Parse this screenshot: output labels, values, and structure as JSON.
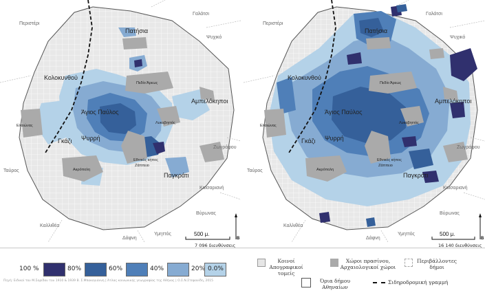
{
  "map_left": {
    "count_text": "7 096 διευθύνσεις",
    "labels": {
      "patisia": "Πατήσια",
      "peristeri": "Περιστέρι",
      "galatsi": "Γαλάτσι",
      "psychiko": "Ψυχικό",
      "kolokynthou": "Κολοκυνθού",
      "pedio_areos": "Πεδίο Άρεως",
      "ampelokipoi": "Αμπελόκηποι",
      "agios_pavlos": "Άγιος Παύλος",
      "eleonas": "Ελαιώνας",
      "lykavittos": "Λυκαβηττός",
      "gkazi": "Γκάζι",
      "psyrri": "Ψυρρή",
      "zografou": "Ζωγράφου",
      "ethnikos_kipos": "Εθνικός κήπος",
      "zappeio": "Ζάππειο",
      "tavros": "Ταύρος",
      "akropoli": "Ακρόπολη",
      "pagkrati": "Παγκράτι",
      "kaisariani": "Καισαριανή",
      "kallithea": "Καλλιθέα",
      "vyronas": "Βύρωνας",
      "ymittos": "Υμηττός",
      "dafni": "Δάφνη"
    },
    "scalebar": "500 μ.",
    "north": "Β"
  },
  "map_right": {
    "count_text": "16 140 διευθύνσεις",
    "labels": {
      "patisia": "Πατήσια",
      "peristeri": "Περιστέρι",
      "galatsi": "Γαλάτσι",
      "psychiko": "Ψυχικό",
      "kolokynthou": "Κολοκυνθού",
      "pedio_areos": "Πεδίο Άρεως",
      "ampelokipoi": "Αμπελόκηποι",
      "agios_pavlos": "Άγιος Παύλος",
      "eleonas": "Ελαιώνας",
      "lykavittos": "Λυκαβηττός",
      "gkazi": "Γκάζι",
      "psyrri": "Ψυρρή",
      "zografou": "Ζωγράφου",
      "ethnikos_kipos": "Εθνικός κήπος",
      "zappeio": "Ζάππειο",
      "tavros": "Ταύρος",
      "akropoli": "Ακρόπολη",
      "pagkrati": "Παγκράτι",
      "kaisariani": "Καισαριανή",
      "kallithea": "Καλλιθέα",
      "vyronas": "Βύρωνας",
      "ymittos": "Υμηττός",
      "dafni": "Δάφνη"
    },
    "scalebar": "500 μ.",
    "north": "Β"
  },
  "legend": {
    "scale_items": [
      {
        "label": "100 %",
        "color": "#30306e"
      },
      {
        "label": "80%",
        "color": "#35609a"
      },
      {
        "label": "60%",
        "color": "#4f7fb8"
      },
      {
        "label": "40%",
        "color": "#86abd2"
      },
      {
        "label": "20%",
        "color": "#b4d2e8"
      },
      {
        "label": "0.0%",
        "color": "#b4d2e8"
      }
    ],
    "categories": {
      "census_sectors": "Κοινοί\nΑπογραφικοί τομείς",
      "green_spaces": "Χώροι πρασίνου,\nΑρχαιολογικοί χώροι",
      "surrounding_municipalities": "Περιβάλλοντες\nδήμοι",
      "municipality_bounds": "Όρια δήμου\nΑθηναίων",
      "railway": "Σιδηροδρομική γραμμή"
    },
    "colors": {
      "census": "#e6e6e6",
      "green": "#aaaaaa",
      "surrounding": "#ffffff"
    }
  },
  "footnote": "Πηγή: Ειδικοί του Μ.Σαρίδου του 1910 & 1939 Β. Σ.Μπακογιάννη | Άτλας κοινωνικής γεωγραφίας της Αθήνας | Ο.Σ.Ν.Στεφανίδη, 2015"
}
